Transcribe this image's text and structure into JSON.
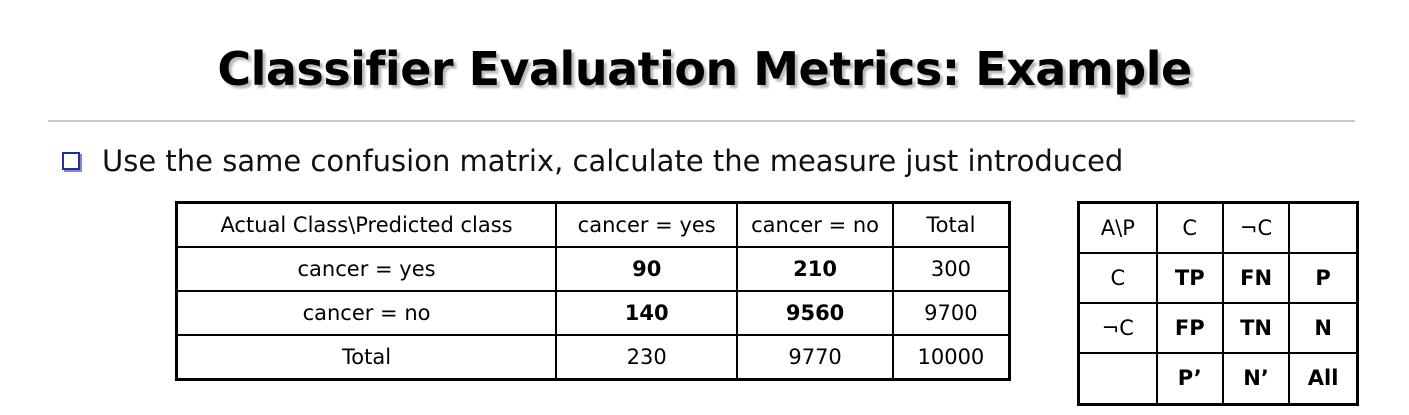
{
  "title": "Classifier Evaluation Metrics: Example",
  "bullet": "Use the same confusion matrix, calculate the measure just introduced",
  "accent_color": "#1f2f9a",
  "confusion_table": {
    "headers": [
      "Actual Class\\Predicted class",
      "cancer = yes",
      "cancer = no",
      "Total"
    ],
    "rows": [
      [
        "cancer = yes",
        "90",
        "210",
        "300"
      ],
      [
        "cancer = no",
        "140",
        "9560",
        "9700"
      ],
      [
        "Total",
        "230",
        "9770",
        "10000"
      ]
    ]
  },
  "reference_table": {
    "rows": [
      [
        "A\\P",
        "C",
        "¬C",
        ""
      ],
      [
        "C",
        "TP",
        "FN",
        "P"
      ],
      [
        "¬C",
        "FP",
        "TN",
        "N"
      ],
      [
        "",
        "P’",
        "N’",
        "All"
      ]
    ]
  }
}
